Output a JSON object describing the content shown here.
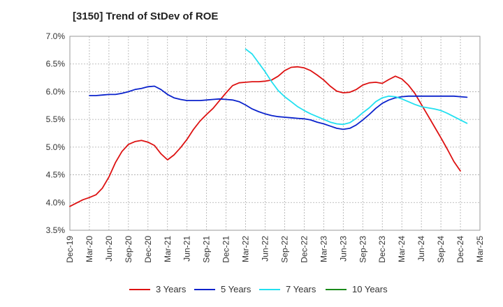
{
  "chart_data": {
    "type": "line",
    "title": "[3150]  Trend of StDev of ROE",
    "xlabel": "",
    "ylabel": "",
    "x_ticks": [
      "Dec-19",
      "Mar-20",
      "Jun-20",
      "Sep-20",
      "Dec-20",
      "Mar-21",
      "Jun-21",
      "Sep-21",
      "Dec-21",
      "Mar-22",
      "Jun-22",
      "Sep-22",
      "Dec-22",
      "Mar-23",
      "Jun-23",
      "Sep-23",
      "Dec-23",
      "Mar-24",
      "Jun-24",
      "Sep-24",
      "Dec-24",
      "Mar-25"
    ],
    "y_ticks": [
      "3.5%",
      "4.0%",
      "4.5%",
      "5.0%",
      "5.5%",
      "6.0%",
      "6.5%",
      "7.0%"
    ],
    "ylim": [
      3.5,
      7.0
    ],
    "grid": true,
    "legend_position": "bottom",
    "series": [
      {
        "name": "3 Years",
        "color": "#dd1111",
        "points": [
          [
            "Dec-19",
            3.93
          ],
          [
            "Jan-20",
            3.99
          ],
          [
            "Feb-20",
            4.05
          ],
          [
            "Mar-20",
            4.09
          ],
          [
            "Apr-20",
            4.14
          ],
          [
            "May-20",
            4.26
          ],
          [
            "Jun-20",
            4.46
          ],
          [
            "Jul-20",
            4.72
          ],
          [
            "Aug-20",
            4.92
          ],
          [
            "Sep-20",
            5.05
          ],
          [
            "Oct-20",
            5.1
          ],
          [
            "Nov-20",
            5.12
          ],
          [
            "Dec-20",
            5.09
          ],
          [
            "Jan-21",
            5.03
          ],
          [
            "Feb-21",
            4.88
          ],
          [
            "Mar-21",
            4.77
          ],
          [
            "Apr-21",
            4.86
          ],
          [
            "May-21",
            4.99
          ],
          [
            "Jun-21",
            5.14
          ],
          [
            "Jul-21",
            5.32
          ],
          [
            "Aug-21",
            5.47
          ],
          [
            "Sep-21",
            5.59
          ],
          [
            "Oct-21",
            5.7
          ],
          [
            "Nov-21",
            5.84
          ],
          [
            "Dec-21",
            5.98
          ],
          [
            "Jan-22",
            6.11
          ],
          [
            "Feb-22",
            6.16
          ],
          [
            "Mar-22",
            6.17
          ],
          [
            "Apr-22",
            6.18
          ],
          [
            "May-22",
            6.18
          ],
          [
            "Jun-22",
            6.19
          ],
          [
            "Jul-22",
            6.21
          ],
          [
            "Aug-22",
            6.28
          ],
          [
            "Sep-22",
            6.38
          ],
          [
            "Oct-22",
            6.44
          ],
          [
            "Nov-22",
            6.45
          ],
          [
            "Dec-22",
            6.43
          ],
          [
            "Jan-23",
            6.38
          ],
          [
            "Feb-23",
            6.3
          ],
          [
            "Mar-23",
            6.21
          ],
          [
            "Apr-23",
            6.1
          ],
          [
            "May-23",
            6.01
          ],
          [
            "Jun-23",
            5.98
          ],
          [
            "Jul-23",
            5.99
          ],
          [
            "Aug-23",
            6.04
          ],
          [
            "Sep-23",
            6.12
          ],
          [
            "Oct-23",
            6.16
          ],
          [
            "Nov-23",
            6.17
          ],
          [
            "Dec-23",
            6.15
          ],
          [
            "Jan-24",
            6.22
          ],
          [
            "Feb-24",
            6.28
          ],
          [
            "Mar-24",
            6.23
          ],
          [
            "Apr-24",
            6.12
          ],
          [
            "May-24",
            5.97
          ],
          [
            "Jun-24",
            5.77
          ],
          [
            "Jul-24",
            5.57
          ],
          [
            "Aug-24",
            5.37
          ],
          [
            "Sep-24",
            5.17
          ],
          [
            "Oct-24",
            4.96
          ],
          [
            "Nov-24",
            4.74
          ],
          [
            "Dec-24",
            4.57
          ]
        ]
      },
      {
        "name": "5 Years",
        "color": "#0a22cc",
        "points": [
          [
            "Mar-20",
            5.93
          ],
          [
            "Apr-20",
            5.93
          ],
          [
            "May-20",
            5.94
          ],
          [
            "Jun-20",
            5.95
          ],
          [
            "Jul-20",
            5.95
          ],
          [
            "Aug-20",
            5.97
          ],
          [
            "Sep-20",
            6.0
          ],
          [
            "Oct-20",
            6.04
          ],
          [
            "Nov-20",
            6.06
          ],
          [
            "Dec-20",
            6.09
          ],
          [
            "Jan-21",
            6.1
          ],
          [
            "Feb-21",
            6.04
          ],
          [
            "Mar-21",
            5.95
          ],
          [
            "Apr-21",
            5.89
          ],
          [
            "May-21",
            5.86
          ],
          [
            "Jun-21",
            5.84
          ],
          [
            "Jul-21",
            5.84
          ],
          [
            "Aug-21",
            5.84
          ],
          [
            "Sep-21",
            5.85
          ],
          [
            "Oct-21",
            5.86
          ],
          [
            "Nov-21",
            5.87
          ],
          [
            "Dec-21",
            5.86
          ],
          [
            "Jan-22",
            5.85
          ],
          [
            "Feb-22",
            5.82
          ],
          [
            "Mar-22",
            5.76
          ],
          [
            "Apr-22",
            5.69
          ],
          [
            "May-22",
            5.64
          ],
          [
            "Jun-22",
            5.6
          ],
          [
            "Jul-22",
            5.57
          ],
          [
            "Aug-22",
            5.55
          ],
          [
            "Sep-22",
            5.54
          ],
          [
            "Oct-22",
            5.53
          ],
          [
            "Nov-22",
            5.52
          ],
          [
            "Dec-22",
            5.51
          ],
          [
            "Jan-23",
            5.49
          ],
          [
            "Feb-23",
            5.45
          ],
          [
            "Mar-23",
            5.42
          ],
          [
            "Apr-23",
            5.38
          ],
          [
            "May-23",
            5.34
          ],
          [
            "Jun-23",
            5.32
          ],
          [
            "Jul-23",
            5.34
          ],
          [
            "Aug-23",
            5.4
          ],
          [
            "Sep-23",
            5.49
          ],
          [
            "Oct-23",
            5.59
          ],
          [
            "Nov-23",
            5.7
          ],
          [
            "Dec-23",
            5.79
          ],
          [
            "Jan-24",
            5.85
          ],
          [
            "Feb-24",
            5.89
          ],
          [
            "Mar-24",
            5.91
          ],
          [
            "Apr-24",
            5.92
          ],
          [
            "May-24",
            5.92
          ],
          [
            "Jun-24",
            5.92
          ],
          [
            "Jul-24",
            5.92
          ],
          [
            "Aug-24",
            5.92
          ],
          [
            "Sep-24",
            5.92
          ],
          [
            "Oct-24",
            5.92
          ],
          [
            "Nov-24",
            5.92
          ],
          [
            "Dec-24",
            5.91
          ],
          [
            "Jan-25",
            5.9
          ]
        ]
      },
      {
        "name": "7 Years",
        "color": "#22e0f0",
        "points": [
          [
            "Mar-22",
            6.77
          ],
          [
            "Apr-22",
            6.68
          ],
          [
            "May-22",
            6.52
          ],
          [
            "Jun-22",
            6.36
          ],
          [
            "Jul-22",
            6.18
          ],
          [
            "Aug-22",
            6.02
          ],
          [
            "Sep-22",
            5.91
          ],
          [
            "Oct-22",
            5.82
          ],
          [
            "Nov-22",
            5.73
          ],
          [
            "Dec-22",
            5.66
          ],
          [
            "Jan-23",
            5.6
          ],
          [
            "Feb-23",
            5.55
          ],
          [
            "Mar-23",
            5.5
          ],
          [
            "Apr-23",
            5.45
          ],
          [
            "May-23",
            5.42
          ],
          [
            "Jun-23",
            5.41
          ],
          [
            "Jul-23",
            5.44
          ],
          [
            "Aug-23",
            5.52
          ],
          [
            "Sep-23",
            5.62
          ],
          [
            "Oct-23",
            5.71
          ],
          [
            "Nov-23",
            5.82
          ],
          [
            "Dec-23",
            5.89
          ],
          [
            "Jan-24",
            5.92
          ],
          [
            "Feb-24",
            5.91
          ],
          [
            "Mar-24",
            5.87
          ],
          [
            "Apr-24",
            5.82
          ],
          [
            "May-24",
            5.77
          ],
          [
            "Jun-24",
            5.73
          ],
          [
            "Jul-24",
            5.71
          ],
          [
            "Aug-24",
            5.69
          ],
          [
            "Sep-24",
            5.66
          ],
          [
            "Oct-24",
            5.61
          ],
          [
            "Nov-24",
            5.55
          ],
          [
            "Dec-24",
            5.49
          ],
          [
            "Jan-25",
            5.43
          ]
        ]
      },
      {
        "name": "10 Years",
        "color": "#1a8a1a",
        "points": []
      }
    ]
  }
}
